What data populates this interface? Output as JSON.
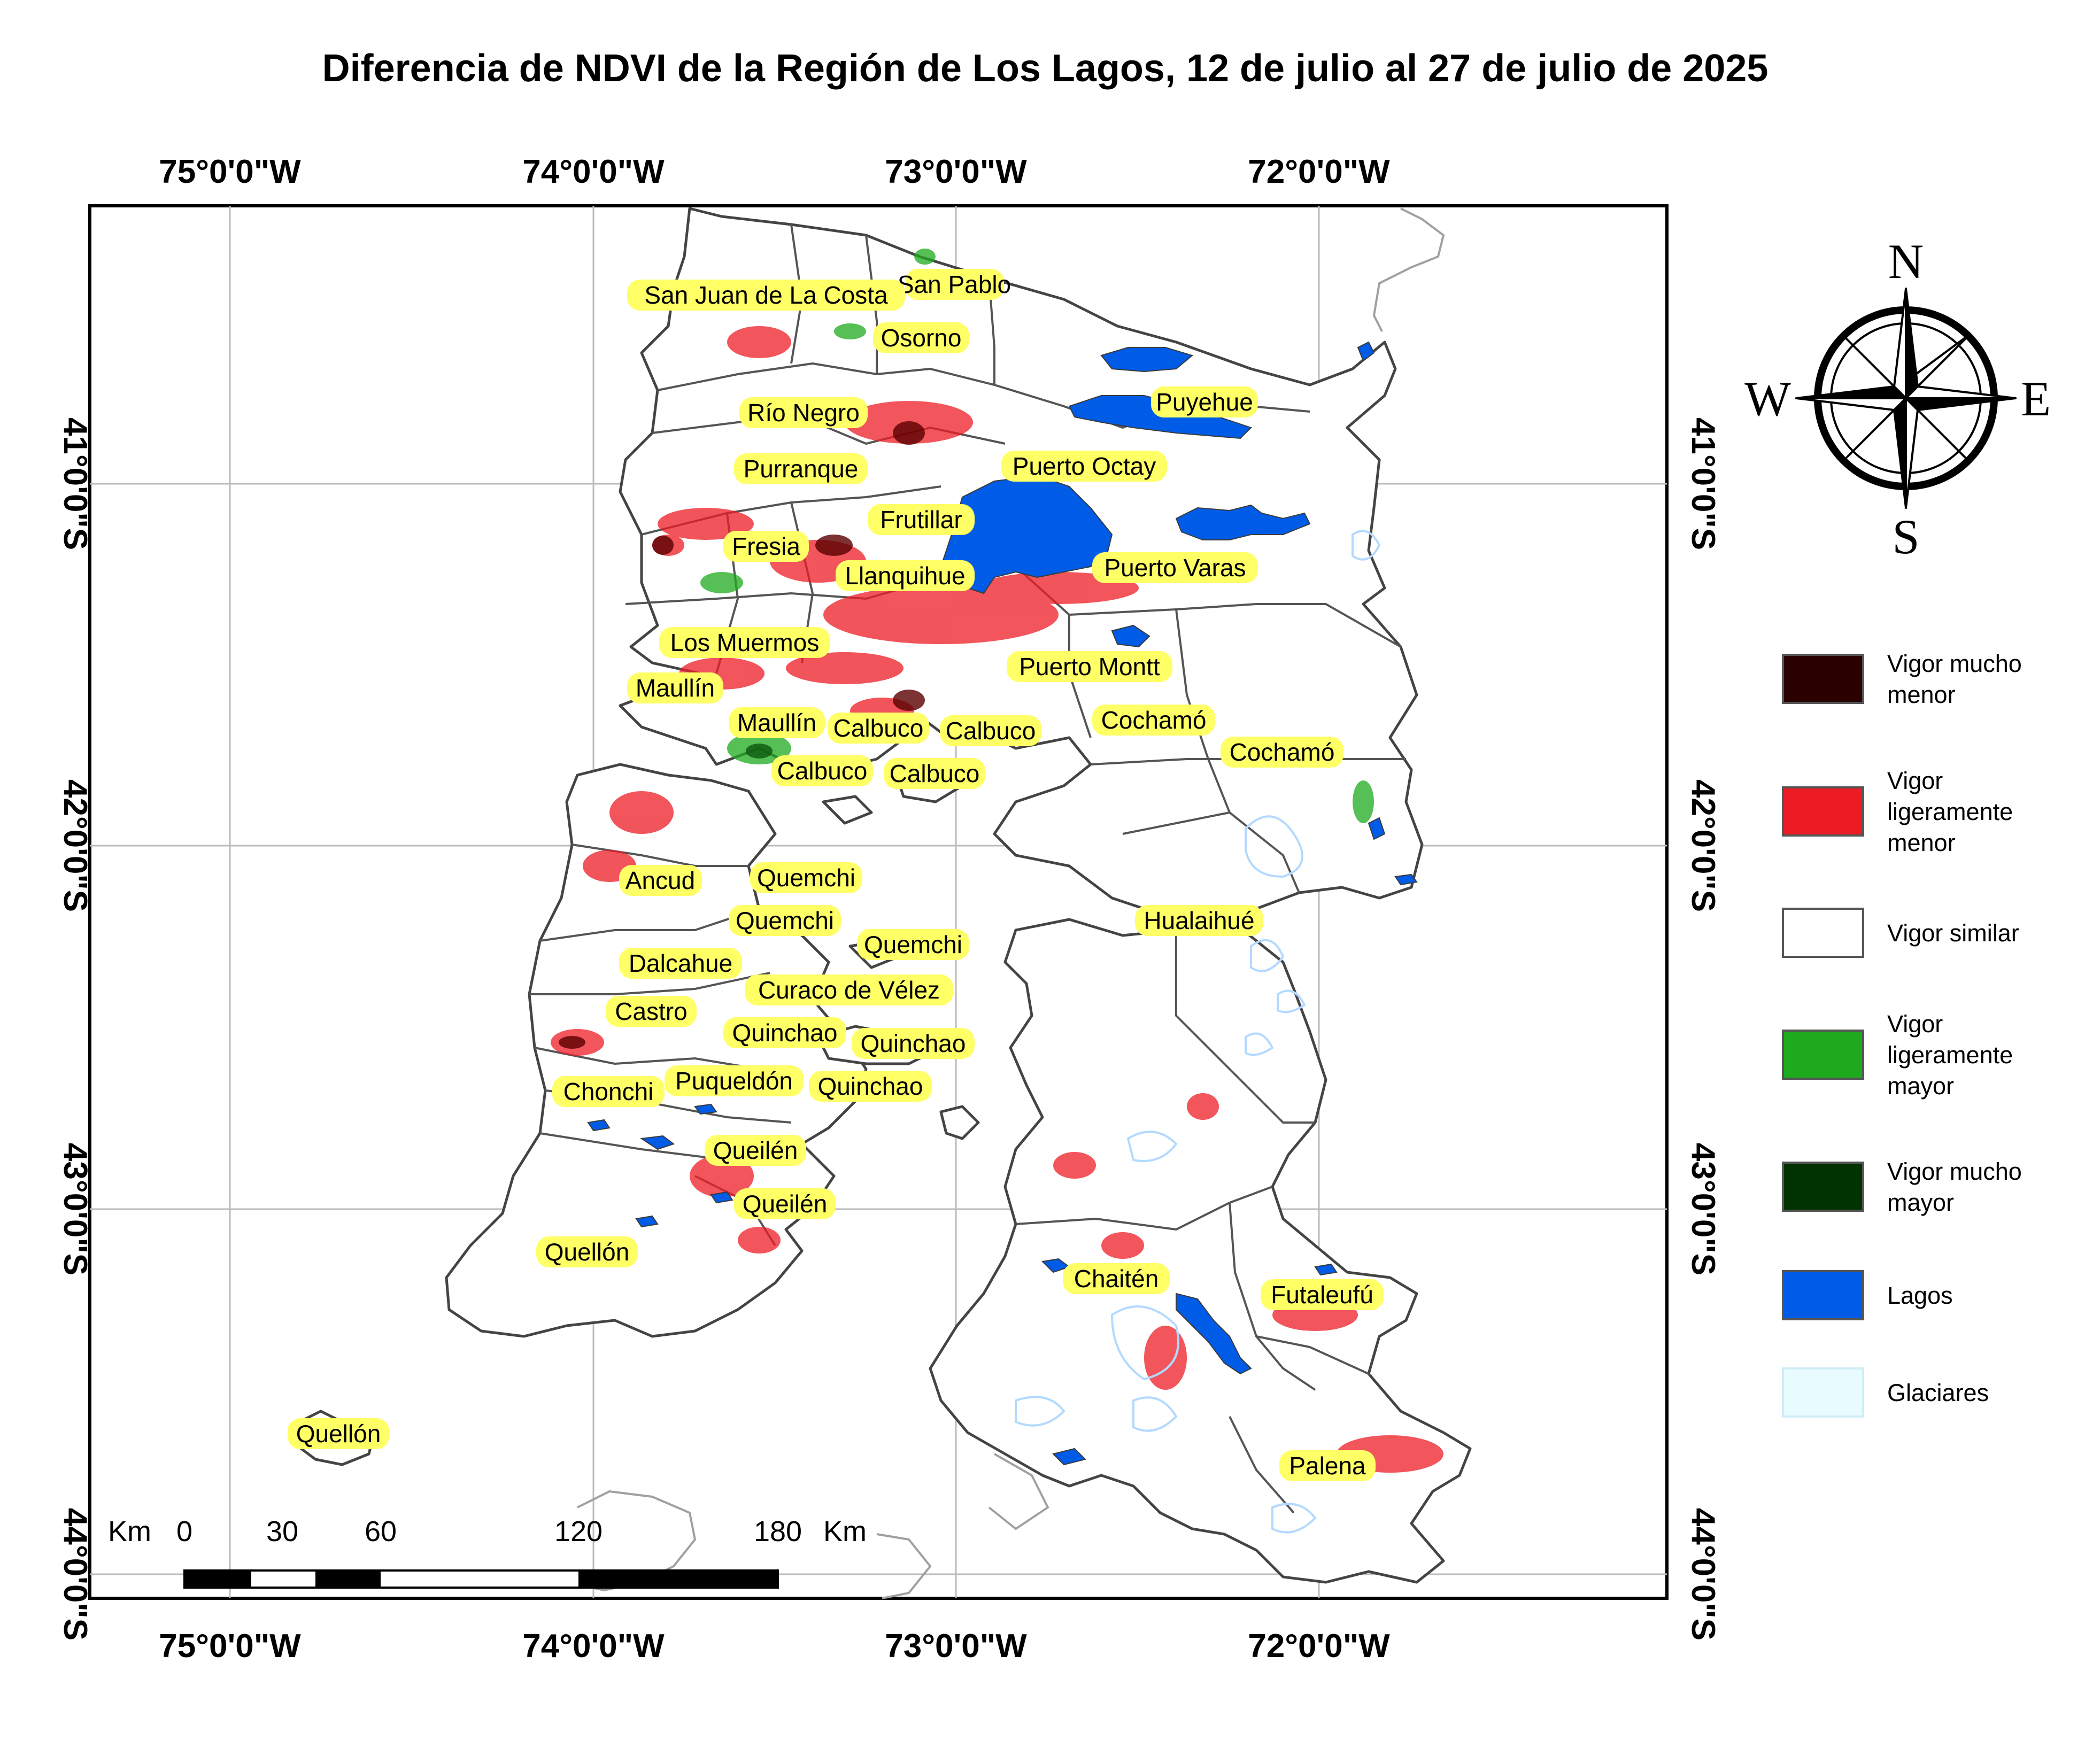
{
  "title": "Diferencia de NDVI de la Región de Los Lagos, 12 de julio al 27 de julio de 2025",
  "graticule": {
    "longitudes": [
      "75°0'0\"W",
      "74°0'0\"W",
      "73°0'0\"W",
      "72°0'0\"W"
    ],
    "latitudes": [
      "41°0'0\"S",
      "42°0'0\"S",
      "43°0'0\"S",
      "44°0'0\"S"
    ]
  },
  "places": [
    "San Pablo",
    "San Juan de La Costa",
    "Osorno",
    "Puyehue",
    "Río Negro",
    "Purranque",
    "Puerto Octay",
    "Frutillar",
    "Fresia",
    "Puerto Varas",
    "Llanquihue",
    "Los Muermos",
    "Puerto Montt",
    "Maullín",
    "Maullín",
    "Calbuco",
    "Calbuco",
    "Cochamó",
    "Cochamó",
    "Calbuco",
    "Calbuco",
    "Ancud",
    "Quemchi",
    "Quemchi",
    "Hualaihué",
    "Quemchi",
    "Dalcahue",
    "Curaco de Vélez",
    "Castro",
    "Quinchao",
    "Quinchao",
    "Puqueldón",
    "Quinchao",
    "Chonchi",
    "Queilén",
    "Queilén",
    "Quellón",
    "Chaitén",
    "Futaleufú",
    "Quellón",
    "Palena"
  ],
  "legend": {
    "items": [
      {
        "lines": [
          "Vigor mucho",
          "menor"
        ],
        "color": "#2a0000"
      },
      {
        "lines": [
          "Vigor",
          "ligeramente",
          "menor"
        ],
        "color": "#ed1c24"
      },
      {
        "lines": [
          "Vigor similar"
        ],
        "color": "#ffffff"
      },
      {
        "lines": [
          "Vigor",
          "ligeramente",
          "mayor"
        ],
        "color": "#1daa1d"
      },
      {
        "lines": [
          "Vigor mucho",
          "mayor"
        ],
        "color": "#003300"
      },
      {
        "lines": [
          "Lagos"
        ],
        "color": "#005ce6"
      },
      {
        "lines": [
          "Glaciares"
        ],
        "color": "#e8fbff"
      }
    ]
  },
  "compass": {
    "n": "N",
    "s": "S",
    "e": "E",
    "w": "W"
  },
  "scale_bar": {
    "unit": "Km",
    "ticks": [
      "0",
      "30",
      "60",
      "120",
      "180"
    ],
    "unit_right": "Km"
  },
  "colors": {
    "lakes": "#005ce6",
    "label_halo": "#ffff66",
    "glaciers": "#b3d9ff",
    "decline": "#ed1c24",
    "strong_decline": "#5a0000",
    "increase": "#1daa1d"
  }
}
